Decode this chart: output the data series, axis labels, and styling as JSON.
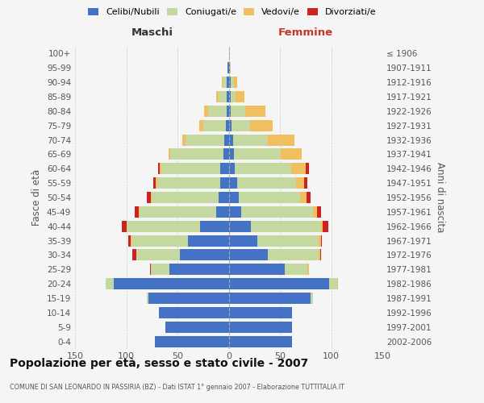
{
  "age_groups": [
    "0-4",
    "5-9",
    "10-14",
    "15-19",
    "20-24",
    "25-29",
    "30-34",
    "35-39",
    "40-44",
    "45-49",
    "50-54",
    "55-59",
    "60-64",
    "65-69",
    "70-74",
    "75-79",
    "80-84",
    "85-89",
    "90-94",
    "95-99",
    "100+"
  ],
  "birth_years": [
    "2002-2006",
    "1997-2001",
    "1992-1996",
    "1987-1991",
    "1982-1986",
    "1977-1981",
    "1972-1976",
    "1967-1971",
    "1962-1966",
    "1957-1961",
    "1952-1956",
    "1947-1951",
    "1942-1946",
    "1937-1941",
    "1932-1936",
    "1927-1931",
    "1922-1926",
    "1917-1921",
    "1912-1916",
    "1907-1911",
    "≤ 1906"
  ],
  "male_celibi": [
    72,
    62,
    68,
    78,
    112,
    58,
    48,
    40,
    28,
    12,
    10,
    8,
    8,
    5,
    4,
    3,
    2,
    2,
    2,
    1,
    0
  ],
  "male_coniugati": [
    0,
    0,
    0,
    2,
    8,
    18,
    42,
    55,
    72,
    75,
    65,
    62,
    58,
    52,
    38,
    22,
    18,
    8,
    4,
    0,
    0
  ],
  "male_vedovi": [
    0,
    0,
    0,
    0,
    0,
    0,
    0,
    1,
    0,
    1,
    1,
    1,
    1,
    2,
    3,
    4,
    4,
    2,
    1,
    0,
    0
  ],
  "male_divorziati": [
    0,
    0,
    0,
    0,
    0,
    1,
    4,
    2,
    4,
    4,
    4,
    3,
    2,
    0,
    0,
    0,
    0,
    0,
    0,
    0,
    0
  ],
  "fem_nubili": [
    62,
    62,
    62,
    80,
    98,
    55,
    38,
    28,
    22,
    12,
    10,
    8,
    6,
    5,
    4,
    3,
    2,
    2,
    2,
    1,
    0
  ],
  "fem_coniugate": [
    0,
    0,
    0,
    2,
    8,
    22,
    50,
    60,
    68,
    70,
    60,
    58,
    55,
    46,
    34,
    18,
    14,
    5,
    3,
    0,
    0
  ],
  "fem_vedove": [
    0,
    0,
    0,
    0,
    1,
    1,
    1,
    2,
    2,
    4,
    6,
    8,
    14,
    20,
    26,
    22,
    20,
    8,
    3,
    1,
    1
  ],
  "fem_divorziate": [
    0,
    0,
    0,
    0,
    0,
    0,
    1,
    1,
    5,
    4,
    4,
    3,
    3,
    0,
    0,
    0,
    0,
    0,
    0,
    0,
    0
  ],
  "colors": {
    "celibi": "#4472c4",
    "coniugati": "#c5d8a0",
    "vedovi": "#f0c060",
    "divorziati": "#cc2222"
  },
  "xlim": 150,
  "bg_color": "#f5f5f5",
  "title": "Popolazione per età, sesso e stato civile - 2007",
  "subtitle": "COMUNE DI SAN LEONARDO IN PASSIRIA (BZ) - Dati ISTAT 1° gennaio 2007 - Elaborazione TUTTITALIA.IT"
}
